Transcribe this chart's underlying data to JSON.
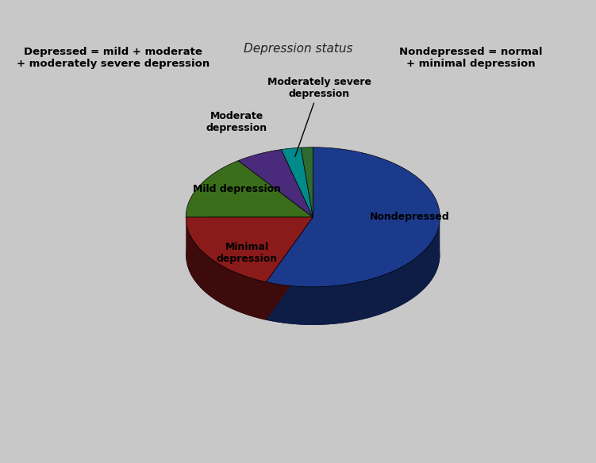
{
  "title": "Depression status",
  "slices": [
    {
      "label": "Nondepressed",
      "value": 56.0,
      "color": "#1B3A8C",
      "dark_color": "#0D1D46"
    },
    {
      "label": "Minimal\ndepression",
      "value": 19.0,
      "color": "#8B1A1A",
      "dark_color": "#3D0B0B"
    },
    {
      "label": "Mild depression",
      "value": 15.0,
      "color": "#3A6E1A",
      "dark_color": "#1A3208"
    },
    {
      "label": "Moderate\ndepression",
      "value": 6.0,
      "color": "#4A2A7A",
      "dark_color": "#231340"
    },
    {
      "label": "Moderately severe\ndepression",
      "value": 2.5,
      "color": "#008B8B",
      "dark_color": "#004444"
    },
    {
      "label": "",
      "value": 1.5,
      "color": "#2E6B2E",
      "dark_color": "#143014"
    }
  ],
  "start_angle": 90,
  "background_color": "#C8A240",
  "outer_bg": "#C8C8C8",
  "left_box_text": "Depressed = mild + moderate\n+ moderately severe depression",
  "right_box_text": "Nondepressed = normal\n+ minimal depression",
  "box_edge_color": "#CC4400",
  "title_fontsize": 11,
  "label_fontsize": 9
}
